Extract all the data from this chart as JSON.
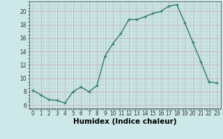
{
  "x": [
    0,
    1,
    2,
    3,
    4,
    5,
    6,
    7,
    8,
    9,
    10,
    11,
    12,
    13,
    14,
    15,
    16,
    17,
    18,
    19,
    20,
    21,
    22,
    23
  ],
  "y": [
    8.2,
    7.5,
    6.8,
    6.7,
    6.3,
    8.0,
    8.7,
    8.0,
    8.9,
    13.3,
    15.2,
    16.7,
    18.8,
    18.8,
    19.2,
    19.7,
    20.0,
    20.8,
    21.0,
    18.3,
    15.4,
    12.5,
    9.5,
    9.3
  ],
  "line_color": "#2d7a6e",
  "marker": "+",
  "marker_color": "#2d7a6e",
  "background_color": "#cce8e8",
  "grid_color_major": "#b8d4d4",
  "grid_color_minor": "#d8ecec",
  "xlabel": "Humidex (Indice chaleur)",
  "xlim": [
    -0.5,
    23.5
  ],
  "ylim": [
    5.5,
    21.5
  ],
  "yticks": [
    6,
    8,
    10,
    12,
    14,
    16,
    18,
    20
  ],
  "xticks": [
    0,
    1,
    2,
    3,
    4,
    5,
    6,
    7,
    8,
    9,
    10,
    11,
    12,
    13,
    14,
    15,
    16,
    17,
    18,
    19,
    20,
    21,
    22,
    23
  ],
  "tick_label_fontsize": 5.5,
  "xlabel_fontsize": 7.5,
  "line_width": 1.0,
  "marker_size": 3.5
}
